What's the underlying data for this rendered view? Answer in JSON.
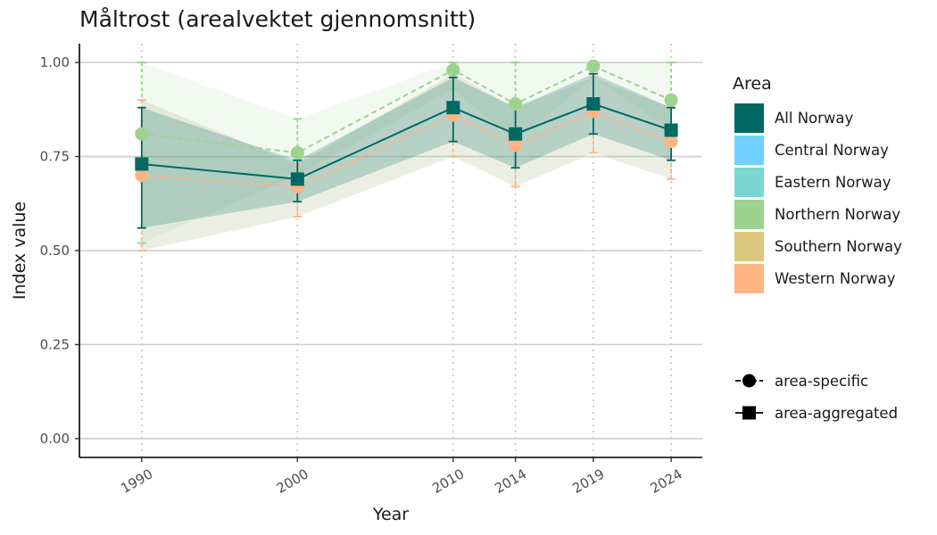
{
  "chart_data": {
    "type": "line",
    "title": "Måltrost (arealvektet gjennomsnitt)",
    "xlabel": "Year",
    "ylabel": "Index value",
    "x": [
      1990,
      2000,
      2010,
      2014,
      2019,
      2024
    ],
    "x_tick_labels": [
      "1990",
      "2000",
      "2010",
      "2014",
      "2019",
      "2024"
    ],
    "y_ticks": [
      0.0,
      0.25,
      0.5,
      0.75,
      1.0
    ],
    "y_tick_labels": [
      "0.00",
      "0.25",
      "0.50",
      "0.75",
      "1.00"
    ],
    "ylim": [
      -0.05,
      1.05
    ],
    "xlim": [
      1986,
      2026
    ],
    "grid": "horizontal major lines; dotted vertical lines at data years",
    "legend_placement": "right",
    "legend_title": "Area",
    "legend_areas": [
      {
        "label": "All Norway",
        "color": "#006964"
      },
      {
        "label": "Central Norway",
        "color": "#70D1FE"
      },
      {
        "label": "Eastern Norway",
        "color": "#7AD7CF"
      },
      {
        "label": "Northern Norway",
        "color": "#9BD38F"
      },
      {
        "label": "Southern Norway",
        "color": "#D9C87E"
      },
      {
        "label": "Western Norway",
        "color": "#FEB483"
      }
    ],
    "legend_shapes": [
      {
        "label": "area-specific",
        "shape": "circle"
      },
      {
        "label": "area-aggregated",
        "shape": "square"
      }
    ],
    "series": [
      {
        "name": "Northern Norway",
        "color": "#9BD38F",
        "shape": "circle",
        "linestyle": "dashed",
        "values": [
          0.81,
          0.76,
          0.98,
          0.89,
          0.99,
          0.9
        ],
        "lower": [
          0.52,
          0.7,
          0.93,
          0.79,
          0.96,
          0.82
        ],
        "upper": [
          1.0,
          0.85,
          1.0,
          1.0,
          1.0,
          1.0
        ]
      },
      {
        "name": "Western Norway",
        "color": "#FEB483",
        "shape": "circle",
        "linestyle": "dashed",
        "values": [
          0.7,
          0.67,
          0.86,
          0.78,
          0.87,
          0.79
        ],
        "lower": [
          0.5,
          0.59,
          0.75,
          0.67,
          0.76,
          0.69
        ],
        "upper": [
          0.9,
          0.73,
          0.97,
          0.88,
          0.96,
          0.88
        ]
      },
      {
        "name": "All Norway",
        "color": "#006964",
        "shape": "square",
        "linestyle": "solid",
        "values": [
          0.73,
          0.69,
          0.88,
          0.81,
          0.89,
          0.82
        ],
        "lower": [
          0.56,
          0.63,
          0.79,
          0.72,
          0.81,
          0.74
        ],
        "upper": [
          0.88,
          0.74,
          0.96,
          0.88,
          0.97,
          0.88
        ]
      }
    ]
  }
}
